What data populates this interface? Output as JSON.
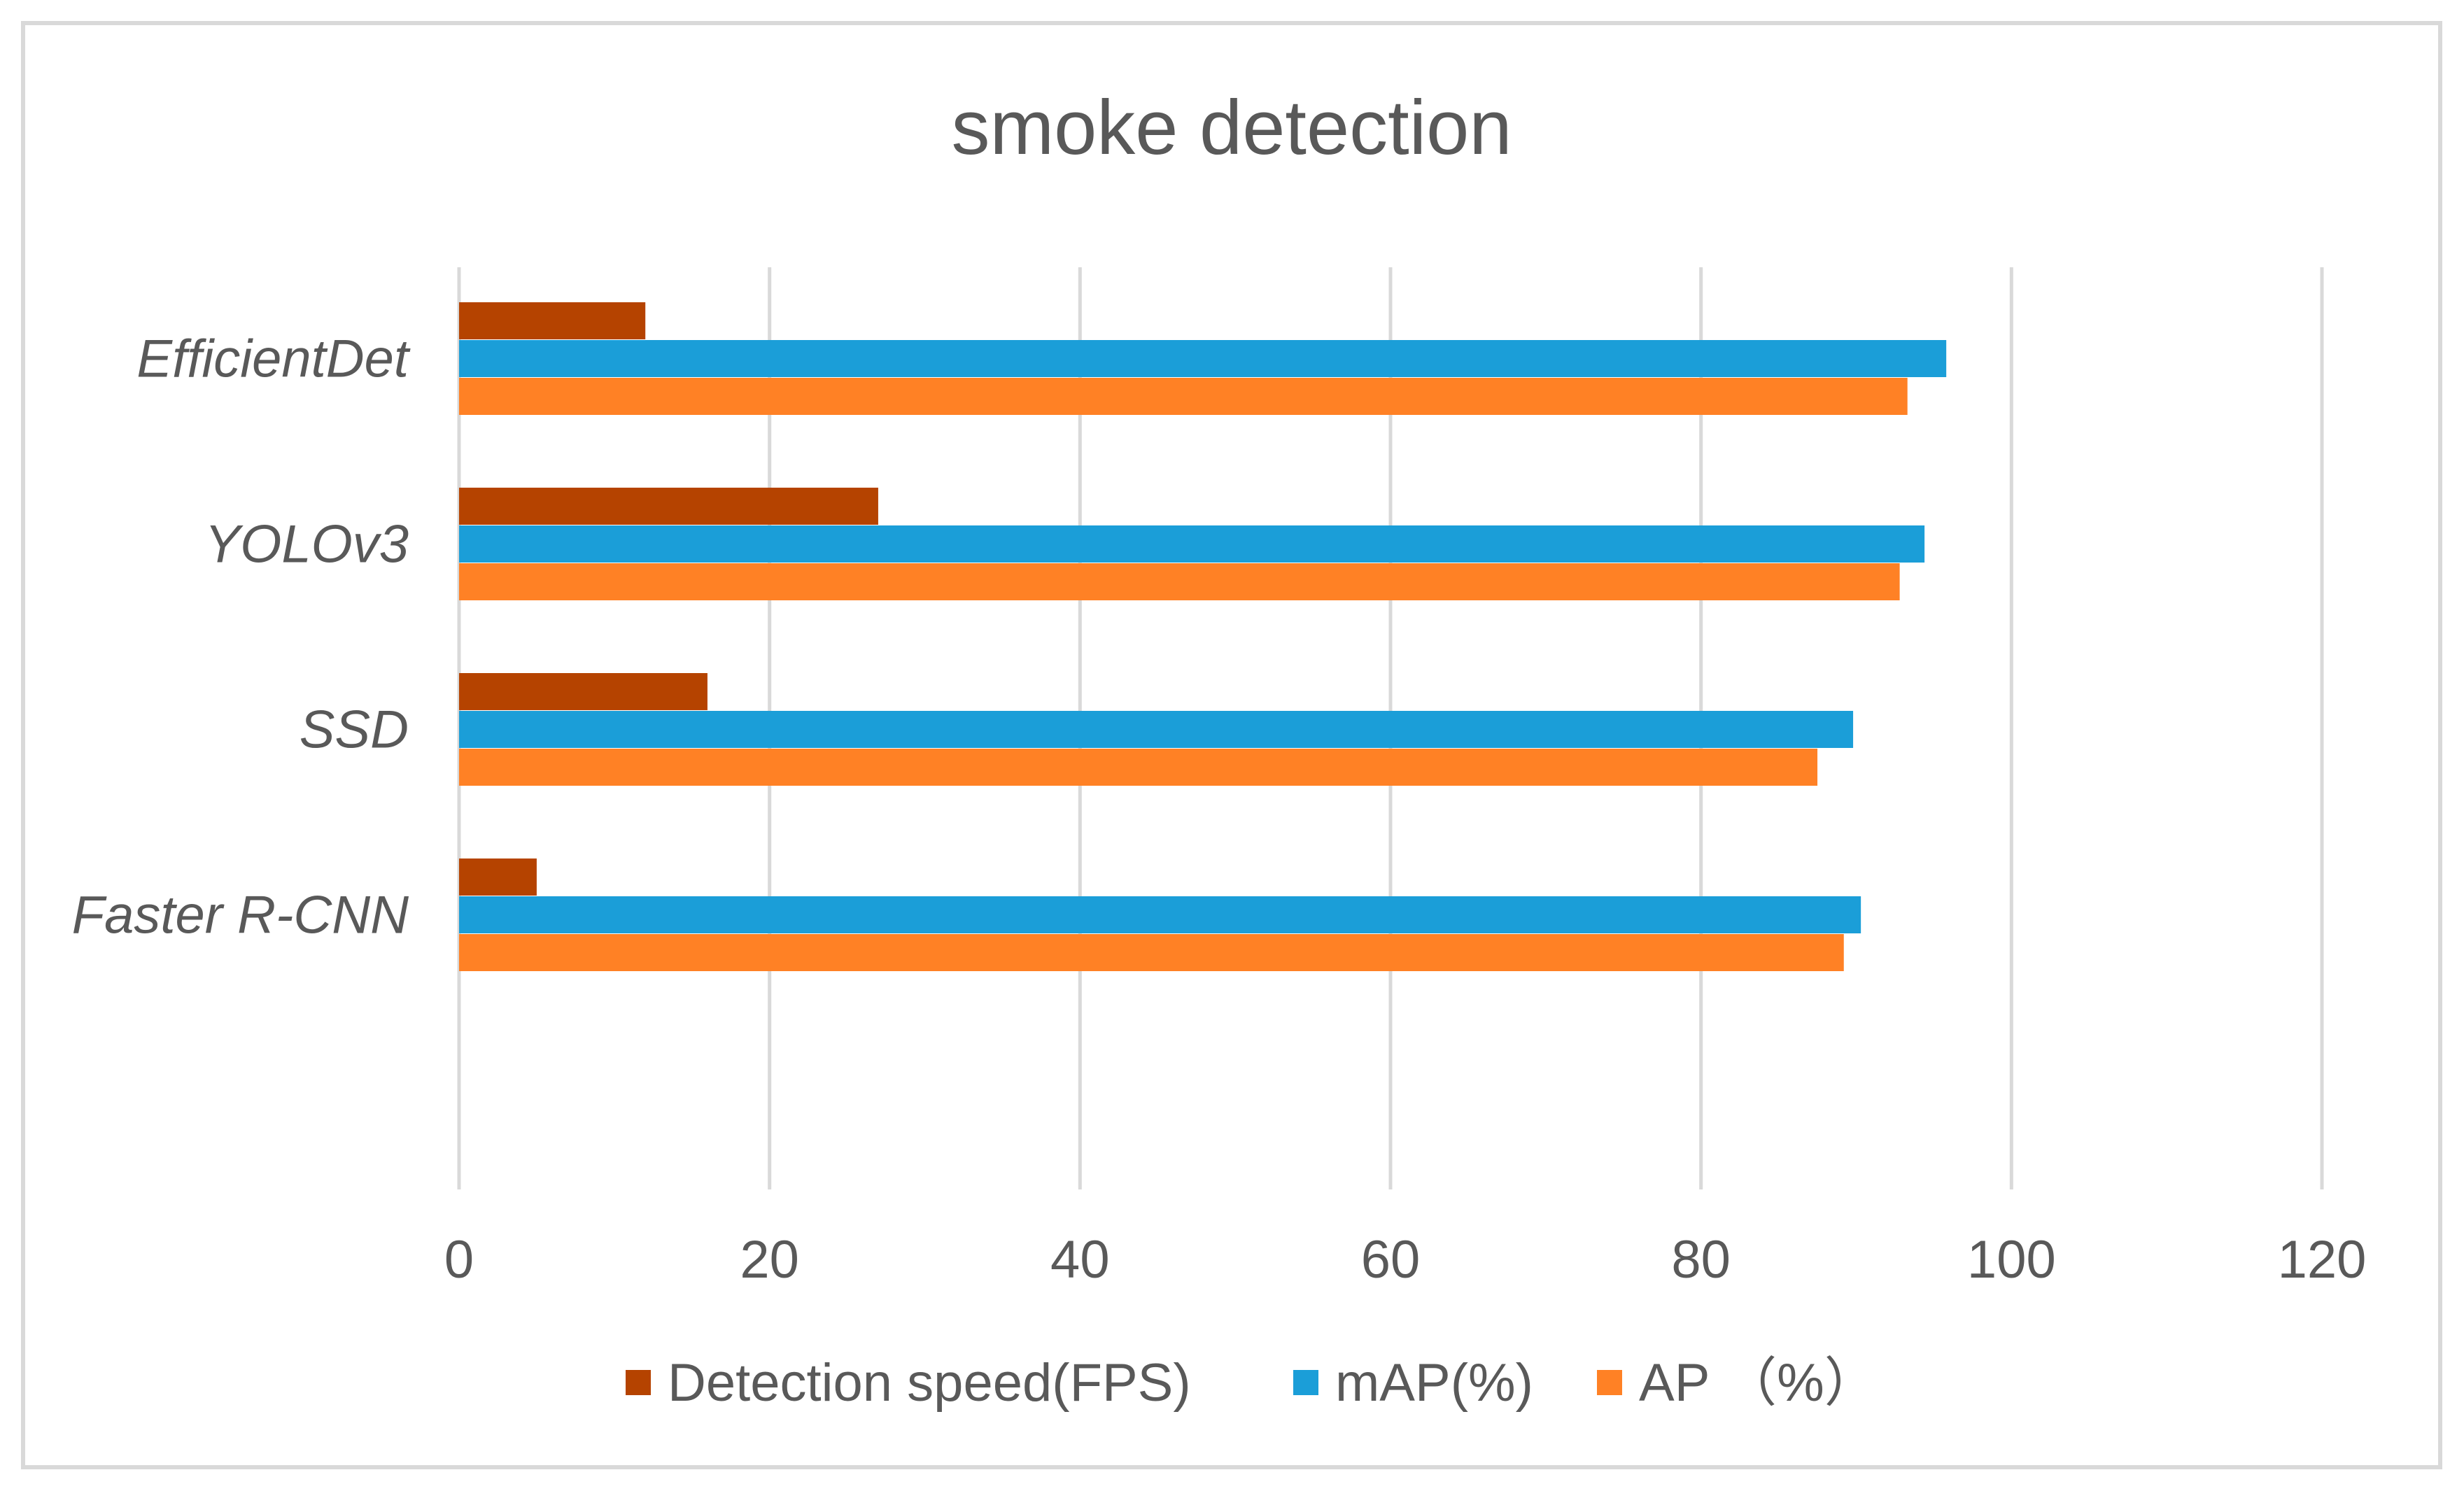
{
  "chart_data": {
    "type": "bar",
    "orientation": "horizontal",
    "title": "smoke detection",
    "categories": [
      "EfficientDet",
      "YOLOv3",
      "SSD",
      "Faster R-CNN"
    ],
    "series": [
      {
        "name": "Detection speed(FPS)",
        "color": "#b54300",
        "values": [
          12,
          27,
          16,
          5
        ]
      },
      {
        "name": "mAP(%)",
        "color": "#1b9ed8",
        "values": [
          95.8,
          94.4,
          89.8,
          90.3
        ]
      },
      {
        "name": "AP  （%）",
        "color": "#ff8125",
        "values": [
          93.3,
          92.8,
          87.5,
          89.2
        ]
      }
    ],
    "xlim": [
      0,
      120
    ],
    "xticks": [
      "0",
      "20",
      "40",
      "60",
      "80",
      "100",
      "120"
    ],
    "xlabel": "",
    "ylabel": "",
    "grid": "vertical",
    "legend": "bottom"
  }
}
